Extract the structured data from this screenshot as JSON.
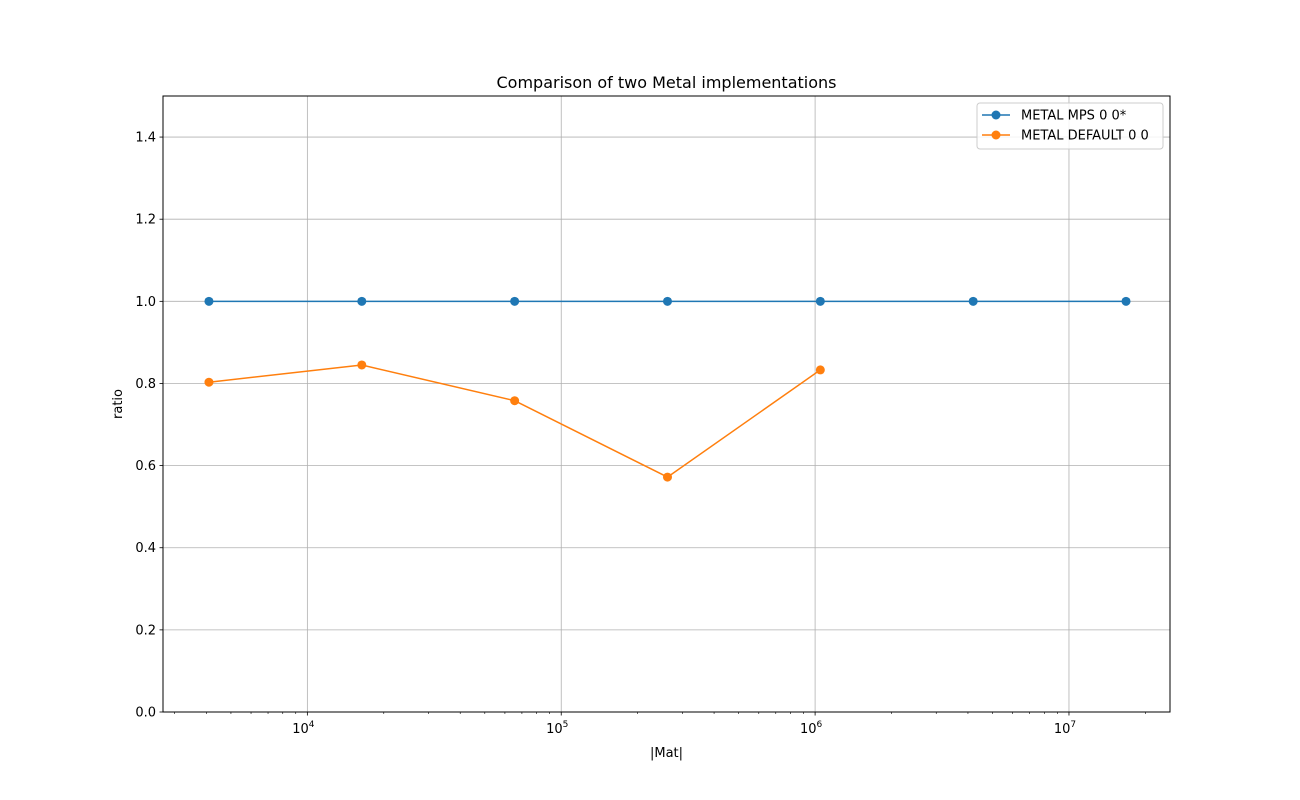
{
  "chart_data": {
    "type": "line",
    "title": "Comparison of two Metal implementations",
    "xlabel": "|Mat|",
    "ylabel": "ratio",
    "xscale": "log",
    "xlim": [
      2700,
      25000000
    ],
    "ylim": [
      0.0,
      1.5
    ],
    "xticks": [
      {
        "value": 10000,
        "base": "10",
        "exp": "4"
      },
      {
        "value": 100000,
        "base": "10",
        "exp": "5"
      },
      {
        "value": 1000000,
        "base": "10",
        "exp": "6"
      },
      {
        "value": 10000000,
        "base": "10",
        "exp": "7"
      }
    ],
    "yticks": [
      "0.0",
      "0.2",
      "0.4",
      "0.6",
      "0.8",
      "1.0",
      "1.2",
      "1.4"
    ],
    "grid": true,
    "legend_position": "top-right",
    "series": [
      {
        "name": "METAL MPS 0 0*",
        "color": "#1f77b4",
        "x": [
          4096,
          16384,
          65536,
          262144,
          1048576,
          4194304,
          16777216
        ],
        "y": [
          1.0,
          1.0,
          1.0,
          1.0,
          1.0,
          1.0,
          1.0
        ]
      },
      {
        "name": "METAL DEFAULT 0 0",
        "color": "#ff7f0e",
        "x": [
          4096,
          16384,
          65536,
          262144,
          1048576
        ],
        "y": [
          0.803,
          0.845,
          0.758,
          0.572,
          0.833
        ]
      }
    ]
  }
}
